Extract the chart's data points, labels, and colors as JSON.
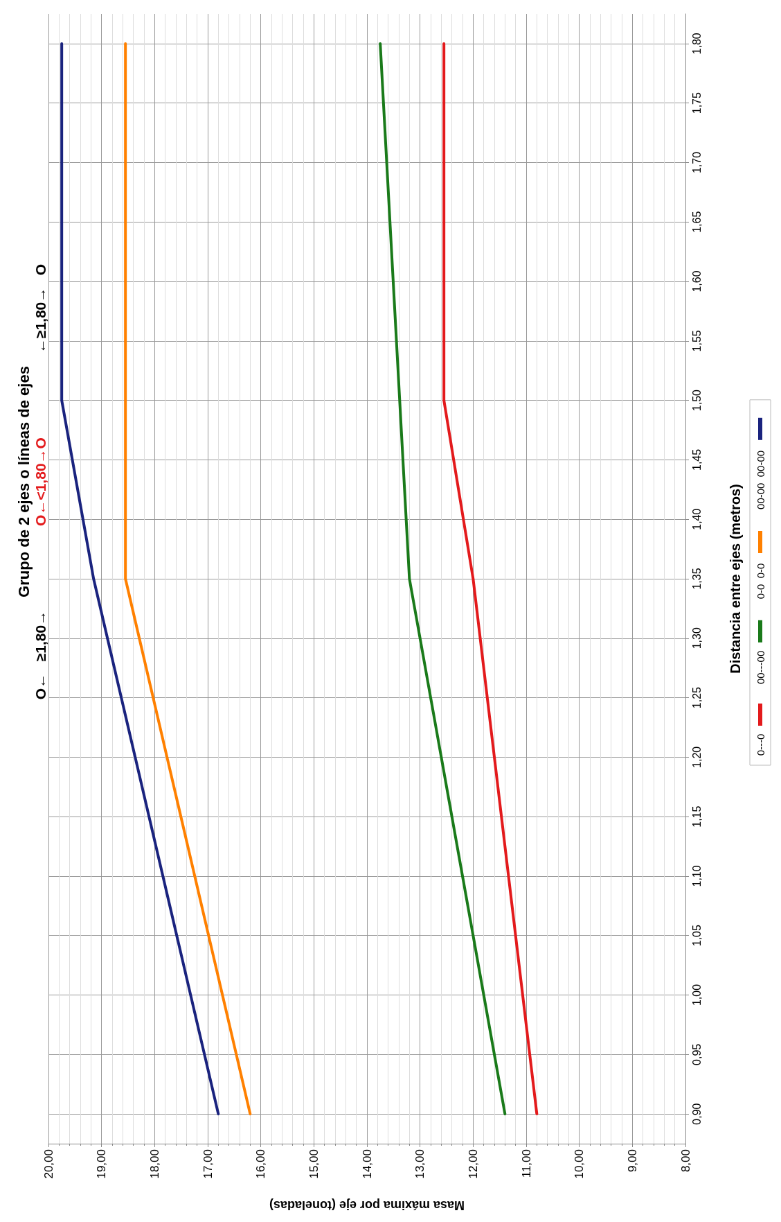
{
  "chart_data": {
    "type": "line",
    "title": "Grupo de 2 ejes o líneas de ejes",
    "xlabel": "Masa máxima por eje (toneladas)",
    "ylabel": "Distancia entre ejes (metros)",
    "annotations": [
      "O←   ≥1,80→",
      "O←<1,80→O",
      "←≥1,80→   O"
    ],
    "series": [
      {
        "name": "0---0",
        "color": "#e31a1c",
        "x": [
          10.8,
          12.0,
          12.55,
          12.55
        ],
        "values": [
          0.9,
          1.35,
          1.5,
          1.8
        ]
      },
      {
        "name": "00---00",
        "color": "#1a7a1a",
        "x": [
          11.4,
          13.2,
          13.75
        ],
        "values": [
          0.9,
          1.35,
          1.8
        ]
      },
      {
        "name": "0-0  0-0",
        "color": "#ff8000",
        "x": [
          16.2,
          18.55,
          18.55
        ],
        "values": [
          0.9,
          1.35,
          1.8
        ]
      },
      {
        "name": "00-00  00-00",
        "color": "#1a237e",
        "x": [
          16.8,
          19.15,
          19.75,
          19.75
        ],
        "values": [
          0.9,
          1.35,
          1.5,
          1.8
        ]
      }
    ],
    "ylim": [
      0.875,
      1.825
    ],
    "yticks": [
      {
        "value": 0.9,
        "label": "0,90"
      },
      {
        "value": 0.95,
        "label": "0,95"
      },
      {
        "value": 1.0,
        "label": "1,00"
      },
      {
        "value": 1.05,
        "label": "1,05"
      },
      {
        "value": 1.1,
        "label": "1,10"
      },
      {
        "value": 1.15,
        "label": "1,15"
      },
      {
        "value": 1.2,
        "label": "1,20"
      },
      {
        "value": 1.25,
        "label": "1,25"
      },
      {
        "value": 1.3,
        "label": "1,30"
      },
      {
        "value": 1.35,
        "label": "1,35"
      },
      {
        "value": 1.4,
        "label": "1,40"
      },
      {
        "value": 1.45,
        "label": "1,45"
      },
      {
        "value": 1.5,
        "label": "1,50"
      },
      {
        "value": 1.55,
        "label": "1,55"
      },
      {
        "value": 1.6,
        "label": "1,60"
      },
      {
        "value": 1.65,
        "label": "1,65"
      },
      {
        "value": 1.7,
        "label": "1,70"
      },
      {
        "value": 1.75,
        "label": "1,75"
      },
      {
        "value": 1.8,
        "label": "1,80"
      }
    ],
    "xlim": [
      20,
      8
    ],
    "xticks": [
      {
        "value": 20,
        "label": "20,00"
      },
      {
        "value": 19,
        "label": "19,00"
      },
      {
        "value": 18,
        "label": "18,00"
      },
      {
        "value": 17,
        "label": "17,00"
      },
      {
        "value": 16,
        "label": "16,00"
      },
      {
        "value": 15,
        "label": "15,00"
      },
      {
        "value": 14,
        "label": "14,00"
      },
      {
        "value": 13,
        "label": "13,00"
      },
      {
        "value": 12,
        "label": "12,00"
      },
      {
        "value": 11,
        "label": "11,00"
      },
      {
        "value": 10,
        "label": "10,00"
      },
      {
        "value": 9,
        "label": "9,00"
      },
      {
        "value": 8,
        "label": "8,00"
      }
    ],
    "grid": true,
    "legend": "right",
    "marker": "none",
    "line_style": "solid"
  }
}
